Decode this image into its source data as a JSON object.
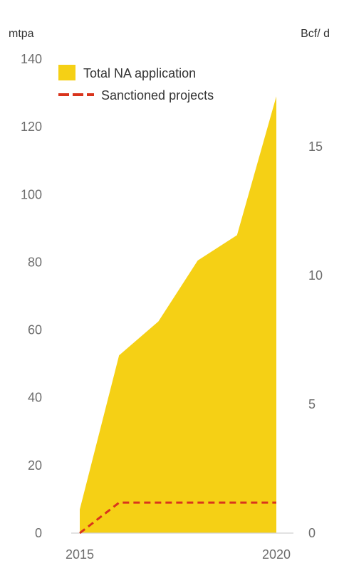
{
  "chart_data": {
    "type": "area",
    "x": [
      2015,
      2016,
      2017,
      2018,
      2019,
      2020
    ],
    "x_tick_labels": [
      "2015",
      "2020"
    ],
    "series": [
      {
        "name": "Total NA application",
        "type": "area",
        "color": "#f5d015",
        "values": [
          7,
          52.5,
          62.5,
          80.5,
          88,
          129
        ]
      },
      {
        "name": "Sanctioned projects",
        "type": "line",
        "style": "dashed",
        "color": "#d9341c",
        "values": [
          0,
          9,
          9,
          9,
          9,
          9
        ]
      }
    ],
    "y_left": {
      "unit": "mtpa",
      "range": [
        0,
        140
      ],
      "ticks": [
        0,
        20,
        40,
        60,
        80,
        100,
        120,
        140
      ]
    },
    "y_right": {
      "unit": "Bcf/ d",
      "range": [
        0,
        18.4
      ],
      "ticks": [
        0,
        5,
        10,
        15
      ]
    },
    "legend": "top-left",
    "grid": false
  }
}
